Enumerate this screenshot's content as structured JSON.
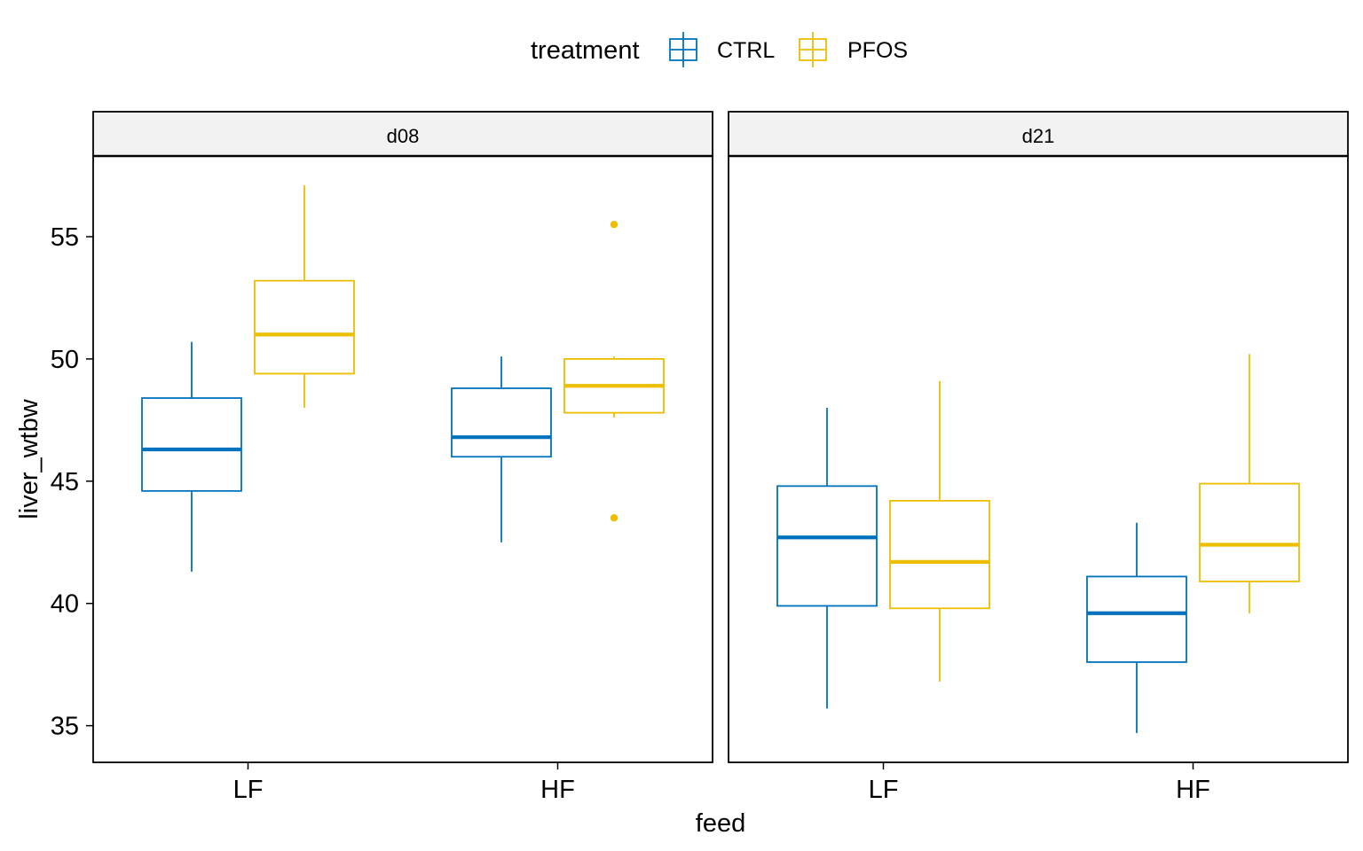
{
  "legend": {
    "title": "treatment",
    "items": [
      {
        "label": "CTRL",
        "color": "#0072BD"
      },
      {
        "label": "PFOS",
        "color": "#EDBD00"
      }
    ]
  },
  "chart_data": {
    "type": "boxplot",
    "xlabel": "feed",
    "ylabel": "liver_wtbw",
    "categories": [
      "LF",
      "HF"
    ],
    "ylim": [
      33.5,
      58.3
    ],
    "yticks": [
      35,
      40,
      45,
      50,
      55
    ],
    "grid": false,
    "legend_position": "top",
    "facets": [
      {
        "label": "d08",
        "groups": [
          {
            "feed": "LF",
            "treatment": "CTRL",
            "whisker_low": 41.3,
            "q1": 44.6,
            "median": 46.3,
            "q3": 48.4,
            "whisker_high": 50.7,
            "outliers": []
          },
          {
            "feed": "LF",
            "treatment": "PFOS",
            "whisker_low": 48.0,
            "q1": 49.4,
            "median": 51.0,
            "q3": 53.2,
            "whisker_high": 57.1,
            "outliers": []
          },
          {
            "feed": "HF",
            "treatment": "CTRL",
            "whisker_low": 42.5,
            "q1": 46.0,
            "median": 46.8,
            "q3": 48.8,
            "whisker_high": 50.1,
            "outliers": []
          },
          {
            "feed": "HF",
            "treatment": "PFOS",
            "whisker_low": 47.6,
            "q1": 47.8,
            "median": 48.9,
            "q3": 50.0,
            "whisker_high": 50.1,
            "outliers": [
              55.5,
              43.5
            ]
          }
        ]
      },
      {
        "label": "d21",
        "groups": [
          {
            "feed": "LF",
            "treatment": "CTRL",
            "whisker_low": 35.7,
            "q1": 39.9,
            "median": 42.7,
            "q3": 44.8,
            "whisker_high": 48.0,
            "outliers": []
          },
          {
            "feed": "LF",
            "treatment": "PFOS",
            "whisker_low": 36.8,
            "q1": 39.8,
            "median": 41.7,
            "q3": 44.2,
            "whisker_high": 49.1,
            "outliers": []
          },
          {
            "feed": "HF",
            "treatment": "CTRL",
            "whisker_low": 34.7,
            "q1": 37.6,
            "median": 39.6,
            "q3": 41.1,
            "whisker_high": 43.3,
            "outliers": []
          },
          {
            "feed": "HF",
            "treatment": "PFOS",
            "whisker_low": 39.6,
            "q1": 40.9,
            "median": 42.4,
            "q3": 44.9,
            "whisker_high": 50.2,
            "outliers": []
          }
        ]
      }
    ]
  }
}
